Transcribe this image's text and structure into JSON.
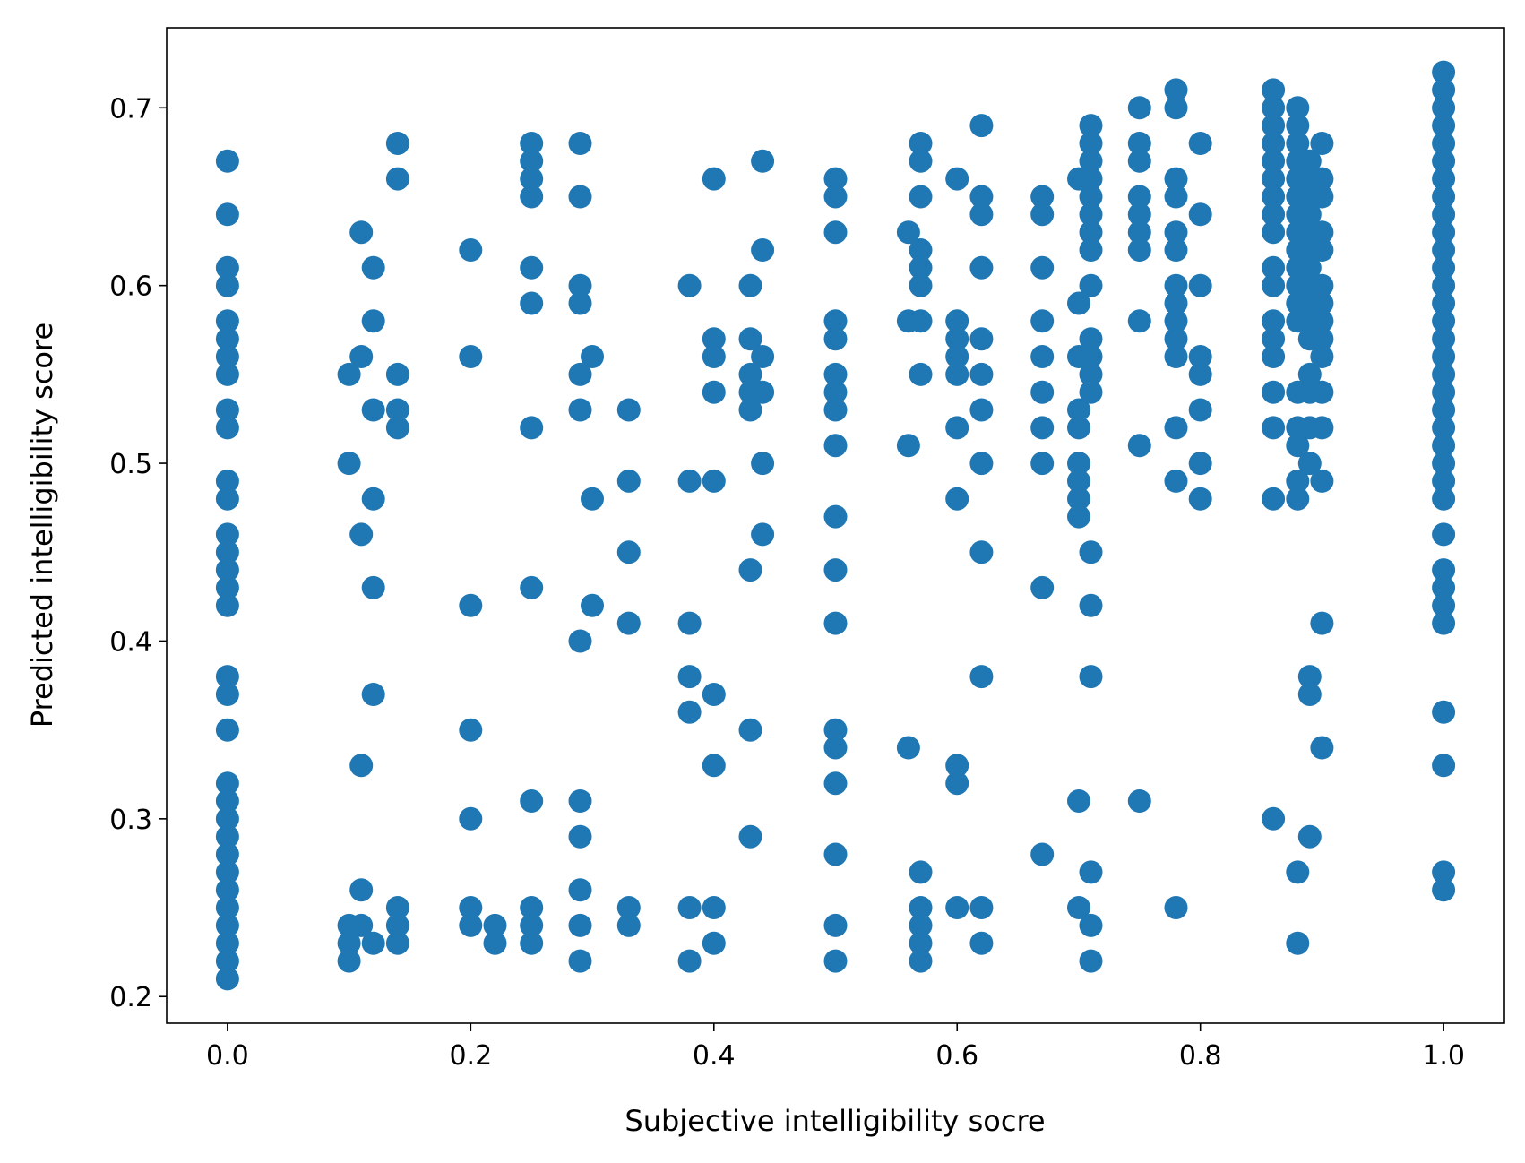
{
  "chart_data": {
    "type": "scatter",
    "title": "",
    "xlabel": "Subjective intelligibility socre",
    "ylabel": "Predicted intelligibility score",
    "xlim": [
      -0.05,
      1.05
    ],
    "ylim": [
      0.185,
      0.745
    ],
    "xticks": [
      0.0,
      0.2,
      0.4,
      0.6,
      0.8,
      1.0
    ],
    "xtick_labels": [
      "0.0",
      "0.2",
      "0.4",
      "0.6",
      "0.8",
      "1.0"
    ],
    "yticks": [
      0.2,
      0.3,
      0.4,
      0.5,
      0.6,
      0.7
    ],
    "ytick_labels": [
      "0.2",
      "0.3",
      "0.4",
      "0.5",
      "0.6",
      "0.7"
    ],
    "grid": false,
    "marker_color": "#1f77b4",
    "series": [
      {
        "name": "points",
        "groups": [
          {
            "x": 0.0,
            "y": [
              0.67,
              0.64,
              0.61,
              0.6,
              0.58,
              0.57,
              0.56,
              0.55,
              0.53,
              0.52,
              0.49,
              0.48,
              0.46,
              0.45,
              0.44,
              0.43,
              0.42,
              0.38,
              0.37,
              0.35,
              0.32,
              0.31,
              0.3,
              0.29,
              0.28,
              0.27,
              0.26,
              0.25,
              0.24,
              0.23,
              0.22,
              0.21
            ]
          },
          {
            "x": 0.1,
            "y": [
              0.55,
              0.5,
              0.24,
              0.23,
              0.22
            ]
          },
          {
            "x": 0.11,
            "y": [
              0.63,
              0.56,
              0.46,
              0.33,
              0.26,
              0.24
            ]
          },
          {
            "x": 0.12,
            "y": [
              0.61,
              0.58,
              0.53,
              0.48,
              0.43,
              0.37,
              0.23
            ]
          },
          {
            "x": 0.14,
            "y": [
              0.68,
              0.66,
              0.55,
              0.53,
              0.52,
              0.25,
              0.24,
              0.23
            ]
          },
          {
            "x": 0.2,
            "y": [
              0.62,
              0.56,
              0.42,
              0.35,
              0.3,
              0.25,
              0.24
            ]
          },
          {
            "x": 0.22,
            "y": [
              0.24,
              0.23
            ]
          },
          {
            "x": 0.25,
            "y": [
              0.68,
              0.67,
              0.66,
              0.65,
              0.61,
              0.59,
              0.52,
              0.43,
              0.31,
              0.25,
              0.24,
              0.23
            ]
          },
          {
            "x": 0.29,
            "y": [
              0.68,
              0.65,
              0.6,
              0.59,
              0.55,
              0.53,
              0.4,
              0.31,
              0.29,
              0.26,
              0.24,
              0.22
            ]
          },
          {
            "x": 0.3,
            "y": [
              0.56,
              0.48,
              0.42
            ]
          },
          {
            "x": 0.33,
            "y": [
              0.53,
              0.49,
              0.45,
              0.41,
              0.25,
              0.24
            ]
          },
          {
            "x": 0.38,
            "y": [
              0.6,
              0.49,
              0.41,
              0.38,
              0.36,
              0.25,
              0.22
            ]
          },
          {
            "x": 0.4,
            "y": [
              0.66,
              0.57,
              0.56,
              0.54,
              0.49,
              0.37,
              0.33,
              0.25,
              0.23
            ]
          },
          {
            "x": 0.43,
            "y": [
              0.6,
              0.57,
              0.55,
              0.54,
              0.53,
              0.44,
              0.35,
              0.29
            ]
          },
          {
            "x": 0.44,
            "y": [
              0.67,
              0.62,
              0.56,
              0.54,
              0.5,
              0.46
            ]
          },
          {
            "x": 0.5,
            "y": [
              0.66,
              0.65,
              0.63,
              0.58,
              0.57,
              0.55,
              0.54,
              0.53,
              0.51,
              0.47,
              0.44,
              0.41,
              0.35,
              0.34,
              0.32,
              0.28,
              0.24,
              0.22
            ]
          },
          {
            "x": 0.56,
            "y": [
              0.63,
              0.58,
              0.51,
              0.34
            ]
          },
          {
            "x": 0.57,
            "y": [
              0.68,
              0.67,
              0.65,
              0.62,
              0.61,
              0.6,
              0.58,
              0.55,
              0.27,
              0.25,
              0.24,
              0.23,
              0.22
            ]
          },
          {
            "x": 0.6,
            "y": [
              0.66,
              0.58,
              0.57,
              0.56,
              0.55,
              0.52,
              0.48,
              0.33,
              0.32,
              0.25
            ]
          },
          {
            "x": 0.62,
            "y": [
              0.69,
              0.65,
              0.64,
              0.61,
              0.57,
              0.55,
              0.53,
              0.5,
              0.45,
              0.38,
              0.25,
              0.23
            ]
          },
          {
            "x": 0.67,
            "y": [
              0.65,
              0.64,
              0.61,
              0.58,
              0.56,
              0.54,
              0.52,
              0.5,
              0.43,
              0.28
            ]
          },
          {
            "x": 0.7,
            "y": [
              0.66,
              0.59,
              0.56,
              0.53,
              0.52,
              0.5,
              0.49,
              0.48,
              0.47,
              0.31,
              0.25
            ]
          },
          {
            "x": 0.71,
            "y": [
              0.69,
              0.68,
              0.67,
              0.66,
              0.65,
              0.64,
              0.63,
              0.62,
              0.6,
              0.57,
              0.56,
              0.55,
              0.54,
              0.45,
              0.42,
              0.38,
              0.27,
              0.24,
              0.22
            ]
          },
          {
            "x": 0.75,
            "y": [
              0.7,
              0.68,
              0.67,
              0.65,
              0.64,
              0.63,
              0.62,
              0.58,
              0.51,
              0.31
            ]
          },
          {
            "x": 0.78,
            "y": [
              0.71,
              0.7,
              0.66,
              0.65,
              0.63,
              0.62,
              0.6,
              0.59,
              0.58,
              0.57,
              0.56,
              0.52,
              0.49,
              0.25
            ]
          },
          {
            "x": 0.8,
            "y": [
              0.68,
              0.64,
              0.6,
              0.56,
              0.55,
              0.53,
              0.5,
              0.48
            ]
          },
          {
            "x": 0.86,
            "y": [
              0.71,
              0.7,
              0.69,
              0.68,
              0.67,
              0.66,
              0.65,
              0.64,
              0.63,
              0.61,
              0.6,
              0.58,
              0.57,
              0.56,
              0.54,
              0.52,
              0.48,
              0.3
            ]
          },
          {
            "x": 0.88,
            "y": [
              0.7,
              0.69,
              0.68,
              0.67,
              0.66,
              0.65,
              0.64,
              0.63,
              0.62,
              0.61,
              0.6,
              0.59,
              0.58,
              0.54,
              0.52,
              0.51,
              0.49,
              0.48,
              0.27,
              0.23
            ]
          },
          {
            "x": 0.89,
            "y": [
              0.67,
              0.66,
              0.65,
              0.64,
              0.63,
              0.62,
              0.61,
              0.6,
              0.59,
              0.58,
              0.57,
              0.55,
              0.54,
              0.52,
              0.5,
              0.38,
              0.37,
              0.29
            ]
          },
          {
            "x": 0.9,
            "y": [
              0.68,
              0.66,
              0.65,
              0.63,
              0.62,
              0.6,
              0.59,
              0.58,
              0.57,
              0.56,
              0.54,
              0.52,
              0.49,
              0.41,
              0.34
            ]
          },
          {
            "x": 1.0,
            "y": [
              0.72,
              0.71,
              0.7,
              0.69,
              0.68,
              0.67,
              0.66,
              0.65,
              0.64,
              0.63,
              0.62,
              0.61,
              0.6,
              0.59,
              0.58,
              0.57,
              0.56,
              0.55,
              0.54,
              0.53,
              0.52,
              0.51,
              0.5,
              0.49,
              0.48,
              0.46,
              0.44,
              0.43,
              0.42,
              0.41,
              0.36,
              0.33,
              0.27,
              0.26
            ]
          }
        ]
      }
    ]
  }
}
